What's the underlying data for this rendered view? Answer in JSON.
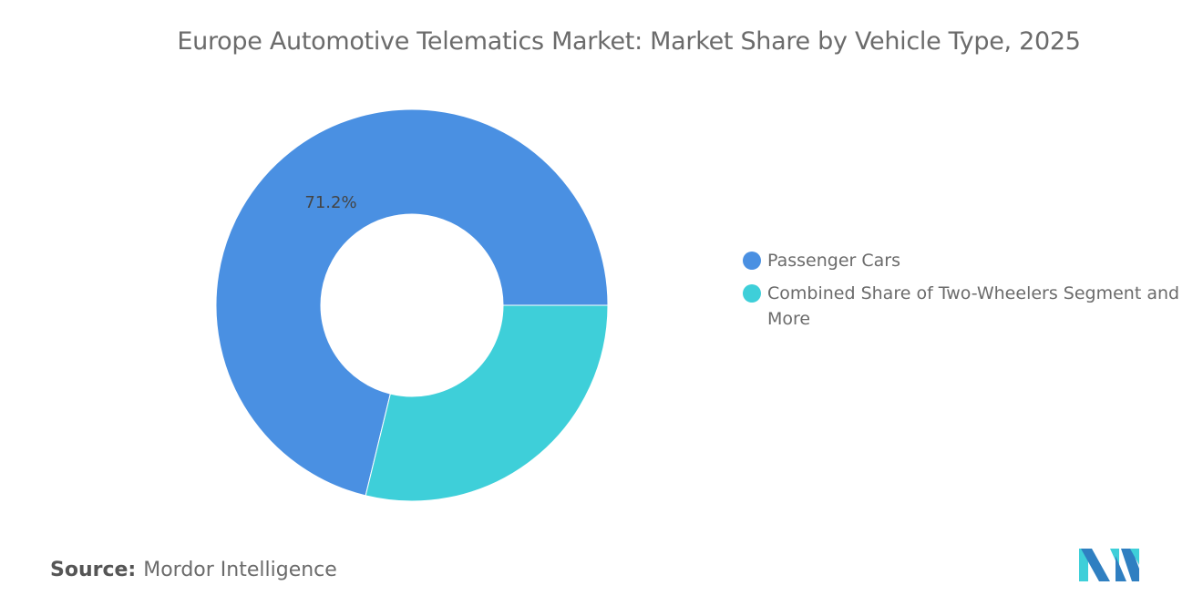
{
  "chart_data": {
    "type": "pie",
    "variant": "donut",
    "title": "Europe Automotive Telematics Market: Market Share by Vehicle Type, 2025",
    "categories": [
      "Passenger Cars",
      "Combined Share of Two-Wheelers Segment and More"
    ],
    "values": [
      71.2,
      28.8
    ],
    "data_labels": [
      "71.2%",
      ""
    ],
    "colors": [
      "#4a90e2",
      "#3ecfd9"
    ],
    "legend_position": "right"
  },
  "source": {
    "label": "Source:",
    "value": "Mordor Intelligence"
  },
  "logo": {
    "text": "Mordor Intelligence",
    "colors": [
      "#2f7fc1",
      "#3ecfd9"
    ]
  }
}
